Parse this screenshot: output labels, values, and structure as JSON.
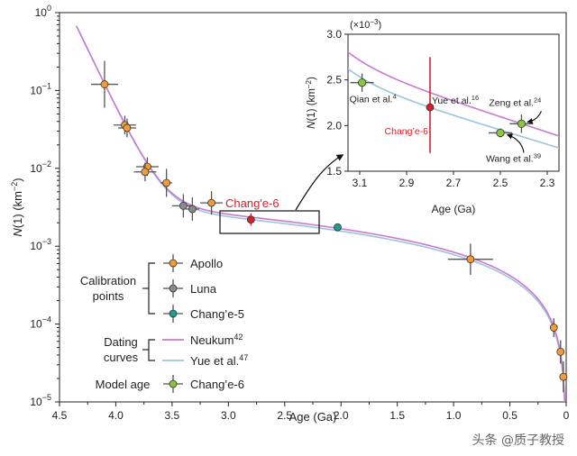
{
  "chart_data": {
    "type": "scatter",
    "title": "",
    "xlabel": "Age (Ga)",
    "ylabel": "N(1) (km⁻²)",
    "xlim": [
      4.5,
      0
    ],
    "ylim": [
      1e-05,
      1
    ],
    "x_ticks": [
      "4.5",
      "4.0",
      "3.5",
      "3.0",
      "2.5",
      "2.0",
      "1.5",
      "1.0",
      "0.5",
      "0"
    ],
    "y_ticks": [
      {
        "mant": "10",
        "exp": "0",
        "value": 1
      },
      {
        "mant": "10",
        "exp": "−1",
        "value": 0.1
      },
      {
        "mant": "10",
        "exp": "−2",
        "value": 0.01
      },
      {
        "mant": "10",
        "exp": "−3",
        "value": 0.001
      },
      {
        "mant": "10",
        "exp": "−4",
        "value": 0.0001
      },
      {
        "mant": "10",
        "exp": "−5",
        "value": 1e-05
      }
    ],
    "colors": {
      "apollo": "#f39c34",
      "luna": "#8a8a8a",
      "change5": "#1a9e94",
      "change6": "#d6202a",
      "model": "#8cc63f",
      "neukum": "#c77ad1",
      "yue": "#9fc3da"
    },
    "series": [
      {
        "name": "Apollo",
        "points": [
          {
            "x": 4.1,
            "y": 0.12,
            "xerr": 0.12,
            "yerr": 0.3
          },
          {
            "x": 3.92,
            "y": 0.036,
            "xerr": 0.1,
            "yerr": 0.12
          },
          {
            "x": 3.9,
            "y": 0.033,
            "xerr": 0.08,
            "yerr": 0.12
          },
          {
            "x": 3.72,
            "y": 0.0105,
            "xerr": 0.1,
            "yerr": 0.12
          },
          {
            "x": 3.74,
            "y": 0.009,
            "xerr": 0.1,
            "yerr": 0.12
          },
          {
            "x": 3.55,
            "y": 0.0065,
            "xerr": 0.05,
            "yerr": 0.18
          },
          {
            "x": 3.15,
            "y": 0.0036,
            "xerr": 0.1,
            "yerr": 0.15
          },
          {
            "x": 0.85,
            "y": 0.00068,
            "xerr": 0.2,
            "yerr": 0.2
          },
          {
            "x": 0.11,
            "y": 9e-05,
            "xerr": 0.02,
            "yerr": 0.12
          },
          {
            "x": 0.05,
            "y": 4.4e-05,
            "xerr": 0.02,
            "yerr": 0.15
          },
          {
            "x": 0.025,
            "y": 2.1e-05,
            "xerr": 0.02,
            "yerr": 0.2
          }
        ]
      },
      {
        "name": "Luna",
        "points": [
          {
            "x": 3.4,
            "y": 0.0033,
            "xerr": 0.1,
            "yerr": 0.15
          },
          {
            "x": 3.32,
            "y": 0.003,
            "xerr": 0.06,
            "yerr": 0.15
          }
        ]
      },
      {
        "name": "Chang'e-5",
        "points": [
          {
            "x": 2.03,
            "y": 0.00175,
            "xerr": 0,
            "yerr": 0
          }
        ]
      },
      {
        "name": "Chang'e-6",
        "points": [
          {
            "x": 2.8,
            "y": 0.0022,
            "xerr": 0,
            "yerr": 0.08
          }
        ]
      }
    ],
    "curves": [
      {
        "name": "Neukum",
        "superscript": "42"
      },
      {
        "name": "Yue et al.",
        "superscript": "47"
      }
    ],
    "annotation": "Chang'e-6",
    "legend": {
      "groups": [
        {
          "label_lines": [
            "Calibration",
            "points"
          ],
          "entries": [
            "Apollo",
            "Luna",
            "Chang’e-5"
          ]
        },
        {
          "label_lines": [
            "Dating",
            "curves"
          ],
          "entries": [
            {
              "text": "Neukum",
              "sup": "42"
            },
            {
              "text": "Yue et al.",
              "sup": "47"
            }
          ]
        },
        {
          "label_lines": [
            "Model age"
          ],
          "entries": [
            "Chang’e-6"
          ]
        }
      ]
    },
    "inset": {
      "xlabel": "Age (Ga)",
      "ylabel": "N(1) (km⁻²)",
      "multiplier_text": "(×10",
      "multiplier_exp": "−3",
      "xlim": [
        3.15,
        2.25
      ],
      "ylim": [
        1.5,
        3.0
      ],
      "x_ticks": [
        "3.1",
        "2.9",
        "2.7",
        "2.5",
        "2.3"
      ],
      "y_ticks": [
        "3.0",
        "2.5",
        "2.0",
        "1.5"
      ],
      "change6": {
        "x": 2.8,
        "y": 2.2,
        "ylo": 1.7,
        "yhi": 2.75,
        "label": "Chang’e-6"
      },
      "model_ages": [
        {
          "x": 3.09,
          "y": 2.47,
          "xerr": 0.05,
          "yerr": 0.1,
          "label": "Qian et al.",
          "sup": "4"
        },
        {
          "x": 2.8,
          "y": 2.2,
          "xerr": 0,
          "yerr": 0,
          "label": "Yue et al.",
          "sup": "16"
        },
        {
          "x": 2.41,
          "y": 2.02,
          "xerr": 0.05,
          "yerr": 0.1,
          "label": "Zeng et al.",
          "sup": "24"
        },
        {
          "x": 2.5,
          "y": 1.92,
          "xerr": 0.05,
          "yerr": 0.05,
          "label": "Wang et al.",
          "sup": "39"
        }
      ]
    }
  },
  "watermark": "头条 @质子教授"
}
